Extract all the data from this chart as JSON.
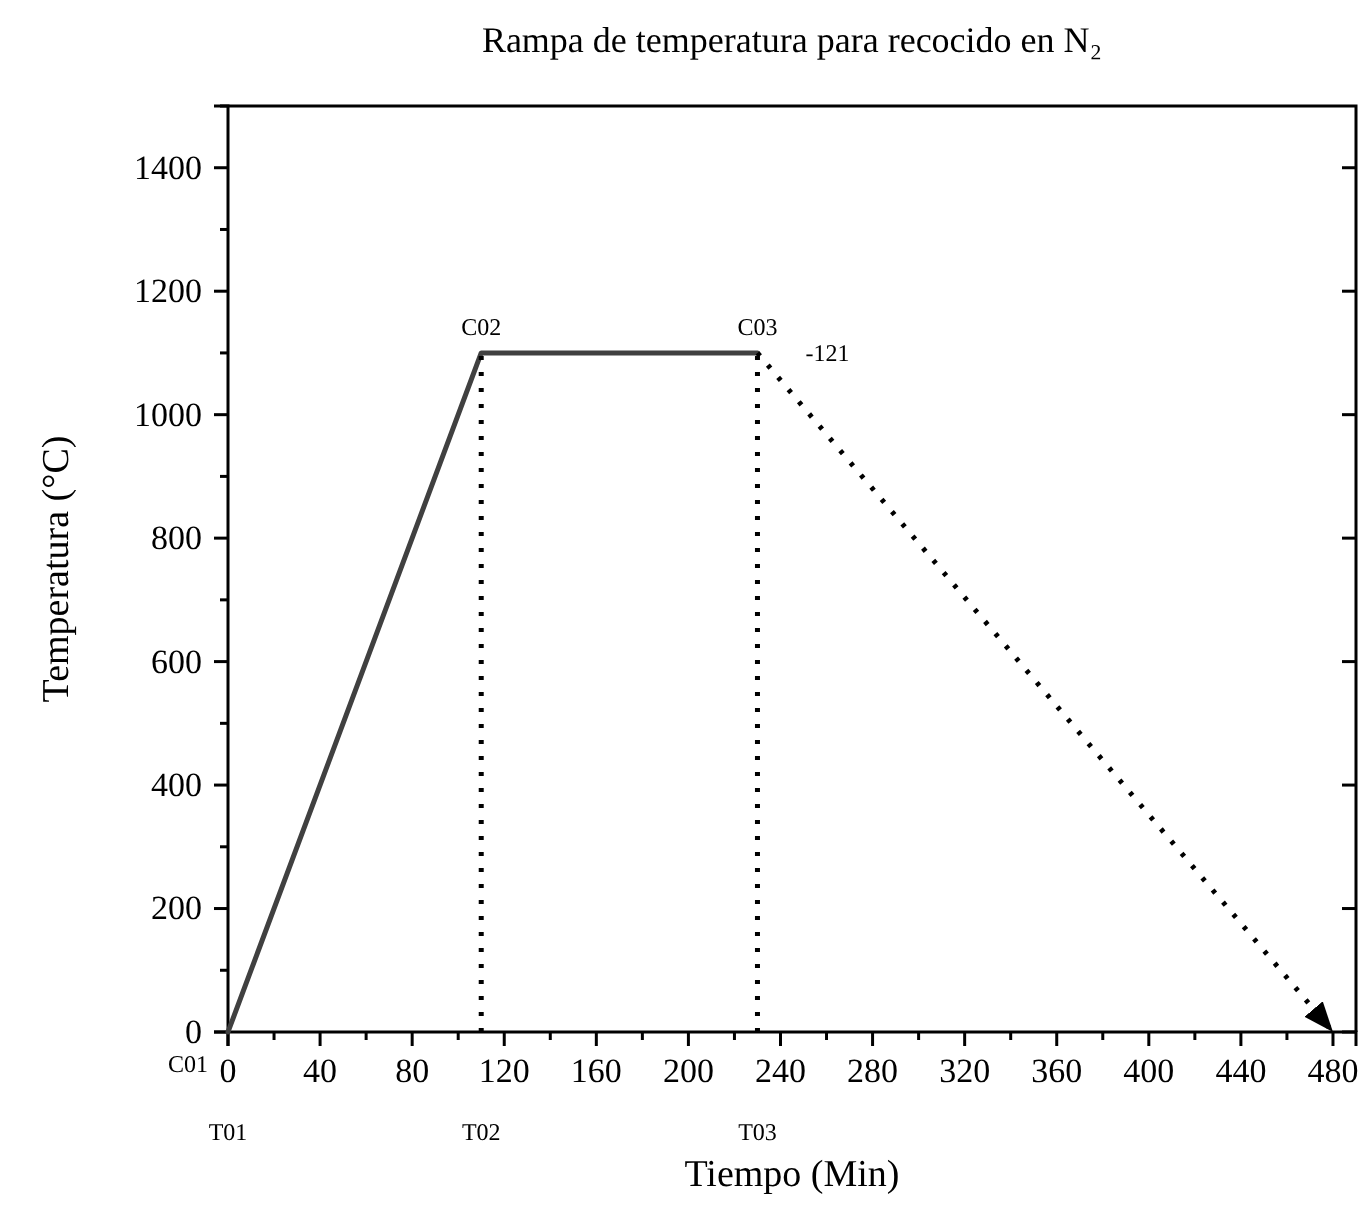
{
  "chart_data": {
    "type": "line",
    "title": "Rampa de temperatura para recocido en N₂",
    "xlabel": "Tiempo (Min)",
    "ylabel": "Temperatura (°C)",
    "xlim": [
      0,
      490
    ],
    "xticks": [
      0,
      40,
      80,
      120,
      160,
      200,
      240,
      280,
      320,
      360,
      400,
      440,
      480
    ],
    "ylim": [
      0,
      1500
    ],
    "yticks": [
      0,
      200,
      400,
      600,
      800,
      1000,
      1200,
      1400
    ],
    "grid": false,
    "marker": "none",
    "series": [
      {
        "color": "#404040",
        "x": [
          0,
          110,
          230
        ],
        "values": [
          0,
          1100,
          1100
        ],
        "line_style": "solid"
      },
      {
        "color": "#000000",
        "x": [
          230,
          480
        ],
        "values": [
          1100,
          0
        ],
        "line_style": "dotted"
      },
      {
        "color": "#000000",
        "x": [
          110,
          110
        ],
        "values": [
          0,
          1100
        ],
        "line_style": "dotted"
      },
      {
        "color": "#000000",
        "x": [
          230,
          230
        ],
        "values": [
          0,
          1100
        ],
        "line_style": "dotted"
      }
    ],
    "annotations": [
      {
        "text": "C01",
        "x": 0,
        "y": 0
      },
      {
        "text": "C02",
        "x": 110,
        "y": 1100
      },
      {
        "text": "C03",
        "x": 230,
        "y": 1100
      },
      {
        "text": "-121",
        "x": 230,
        "y": 1100
      },
      "T01",
      "T02",
      "T03"
    ]
  }
}
